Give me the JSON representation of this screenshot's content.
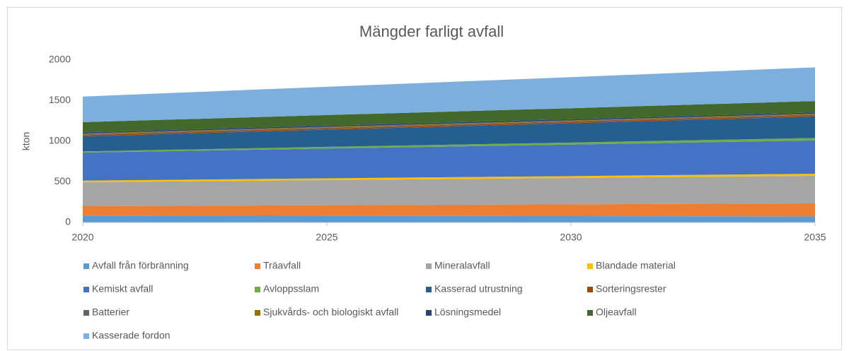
{
  "chart_data": {
    "type": "stacked_area",
    "title": "Mängder farligt avfall",
    "y_label": "kton",
    "x": [
      2020,
      2025,
      2030,
      2035
    ],
    "xlim": [
      2020,
      2035
    ],
    "xticks": [
      2020,
      2025,
      2030,
      2035
    ],
    "ylim": [
      0,
      2000
    ],
    "yticks": [
      0,
      500,
      1000,
      1500,
      2000
    ],
    "grid": false,
    "legend": "bottom",
    "series": [
      {
        "name": "Avfall från förbränning",
        "color": "#5b9bd5",
        "values": [
          85,
          82,
          78,
          75
        ]
      },
      {
        "name": "Träavfall",
        "color": "#ed7d31",
        "values": [
          115,
          130,
          145,
          160
        ]
      },
      {
        "name": "Mineralavfall",
        "color": "#a5a5a5",
        "values": [
          295,
          310,
          325,
          340
        ]
      },
      {
        "name": "Blandade material",
        "color": "#ffc000",
        "values": [
          20,
          22,
          23,
          25
        ]
      },
      {
        "name": "Kemiskt avfall",
        "color": "#4472c4",
        "values": [
          345,
          367,
          388,
          410
        ]
      },
      {
        "name": "Avloppsslam",
        "color": "#70ad47",
        "values": [
          15,
          20,
          25,
          30
        ]
      },
      {
        "name": "Kasserad utrustning",
        "color": "#255e91",
        "values": [
          185,
          212,
          238,
          265
        ]
      },
      {
        "name": "Sorteringsrester",
        "color": "#9e480e",
        "values": [
          15,
          15,
          15,
          15
        ]
      },
      {
        "name": "Batterier",
        "color": "#636363",
        "values": [
          10,
          10,
          10,
          10
        ]
      },
      {
        "name": "Sjukvårds- och biologiskt avfall",
        "color": "#997300",
        "values": [
          10,
          10,
          10,
          10
        ]
      },
      {
        "name": "Lösningsmedel",
        "color": "#264478",
        "values": [
          15,
          15,
          15,
          15
        ]
      },
      {
        "name": "Oljeavfall",
        "color": "#43682b",
        "values": [
          125,
          130,
          135,
          140
        ]
      },
      {
        "name": "Kasserade fordon",
        "color": "#7cafdd",
        "values": [
          315,
          348,
          382,
          415
        ]
      }
    ]
  }
}
